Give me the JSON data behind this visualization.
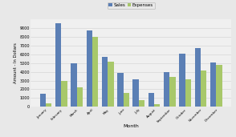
{
  "months": [
    "January",
    "February",
    "March",
    "April",
    "May",
    "June",
    "July",
    "August",
    "September",
    "October",
    "November",
    "December"
  ],
  "sales": [
    1500,
    9500,
    5000,
    8700,
    5700,
    3900,
    3100,
    1600,
    4000,
    6100,
    6700,
    5100
  ],
  "expenses": [
    400,
    2950,
    2250,
    7950,
    5150,
    1550,
    750,
    350,
    3400,
    3100,
    4150,
    4800
  ],
  "sales_color": "#5b7fb5",
  "expenses_color": "#a8c86a",
  "background_color": "#e8e8e8",
  "plot_bg_color": "#f0f0f0",
  "xlabel": "Month",
  "ylabel": "Amount - In Dollars",
  "ylim": [
    0,
    10000
  ],
  "yticks": [
    0,
    1000,
    2000,
    3000,
    4000,
    5000,
    6000,
    7000,
    8000,
    9000
  ],
  "legend_labels": [
    "Sales",
    "Expenses"
  ],
  "bar_width": 0.38,
  "grid_color": "#d0d0d0"
}
